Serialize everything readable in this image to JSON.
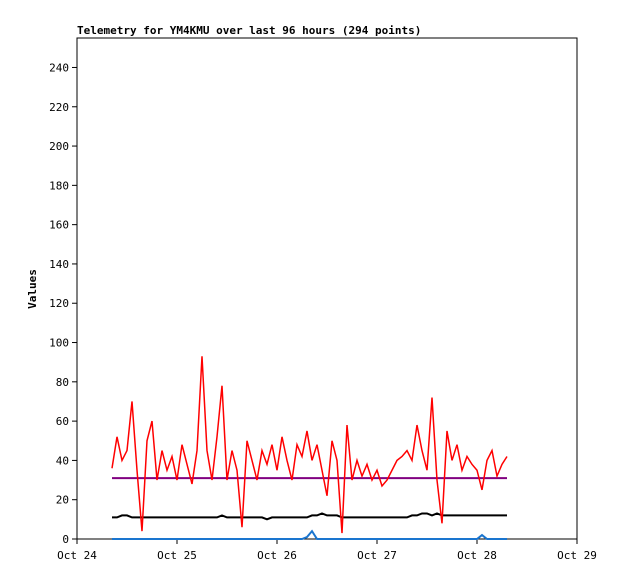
{
  "chart_data": {
    "type": "line",
    "title": "Telemetry for YM4KMU over last 96 hours (294 points)",
    "y_label": "Values",
    "xlim": [
      0,
      5
    ],
    "xticks": [
      {
        "value": 0,
        "label": "Oct 24"
      },
      {
        "value": 1,
        "label": "Oct 25"
      },
      {
        "value": 2,
        "label": "Oct 26"
      },
      {
        "value": 3,
        "label": "Oct 27"
      },
      {
        "value": 4,
        "label": "Oct 28"
      },
      {
        "value": 5,
        "label": "Oct 29"
      }
    ],
    "ylim": [
      0,
      255
    ],
    "yticks": [
      0,
      20,
      40,
      60,
      80,
      100,
      120,
      140,
      160,
      180,
      200,
      220,
      240
    ],
    "x": [
      0.35,
      0.4,
      0.45,
      0.5,
      0.55,
      0.6,
      0.65,
      0.7,
      0.75,
      0.8,
      0.85,
      0.9,
      0.95,
      1.0,
      1.05,
      1.1,
      1.15,
      1.2,
      1.25,
      1.3,
      1.35,
      1.4,
      1.45,
      1.5,
      1.55,
      1.6,
      1.65,
      1.7,
      1.75,
      1.8,
      1.85,
      1.9,
      1.95,
      2.0,
      2.05,
      2.1,
      2.15,
      2.2,
      2.25,
      2.3,
      2.35,
      2.4,
      2.45,
      2.5,
      2.55,
      2.6,
      2.65,
      2.7,
      2.75,
      2.8,
      2.85,
      2.9,
      2.95,
      3.0,
      3.05,
      3.1,
      3.15,
      3.2,
      3.25,
      3.3,
      3.35,
      3.4,
      3.45,
      3.5,
      3.55,
      3.6,
      3.65,
      3.7,
      3.75,
      3.8,
      3.85,
      3.9,
      3.95,
      4.0,
      4.05,
      4.1,
      4.15,
      4.2,
      4.25,
      4.3
    ],
    "series": [
      {
        "color": "#ff0000",
        "values": [
          36,
          52,
          40,
          45,
          70,
          35,
          4,
          50,
          60,
          30,
          45,
          35,
          42,
          30,
          48,
          38,
          28,
          45,
          93,
          45,
          30,
          52,
          78,
          30,
          45,
          35,
          6,
          50,
          40,
          30,
          45,
          38,
          48,
          35,
          52,
          40,
          30,
          48,
          42,
          55,
          40,
          48,
          35,
          22,
          50,
          40,
          3,
          58,
          30,
          40,
          32,
          38,
          30,
          35,
          27,
          30,
          35,
          40,
          42,
          45,
          40,
          58,
          45,
          35,
          72,
          30,
          8,
          55,
          40,
          48,
          35,
          42,
          38,
          35,
          25,
          40,
          45,
          32,
          38,
          42
        ]
      },
      {
        "color": "#800080",
        "values": [
          31,
          31,
          31,
          31,
          31,
          31,
          31,
          31,
          31,
          31,
          31,
          31,
          31,
          31,
          31,
          31,
          31,
          31,
          31,
          31,
          31,
          31,
          31,
          31,
          31,
          31,
          31,
          31,
          31,
          31,
          31,
          31,
          31,
          31,
          31,
          31,
          31,
          31,
          31,
          31,
          31,
          31,
          31,
          31,
          31,
          31,
          31,
          31,
          31,
          31,
          31,
          31,
          31,
          31,
          31,
          31,
          31,
          31,
          31,
          31,
          31,
          31,
          31,
          31,
          31,
          31,
          31,
          31,
          31,
          31,
          31,
          31,
          31,
          31,
          31,
          31,
          31,
          31,
          31,
          31
        ]
      },
      {
        "color": "#000000",
        "values": [
          11,
          11,
          12,
          12,
          11,
          11,
          11,
          11,
          11,
          11,
          11,
          11,
          11,
          11,
          11,
          11,
          11,
          11,
          11,
          11,
          11,
          11,
          12,
          11,
          11,
          11,
          11,
          11,
          11,
          11,
          11,
          10,
          11,
          11,
          11,
          11,
          11,
          11,
          11,
          11,
          12,
          12,
          13,
          12,
          12,
          12,
          11,
          11,
          11,
          11,
          11,
          11,
          11,
          11,
          11,
          11,
          11,
          11,
          11,
          11,
          12,
          12,
          13,
          13,
          12,
          13,
          12,
          12,
          12,
          12,
          12,
          12,
          12,
          12,
          12,
          12,
          12,
          12,
          12,
          12
        ]
      },
      {
        "color": "#1a75cf",
        "values": [
          0,
          0,
          0,
          0,
          0,
          0,
          0,
          0,
          0,
          0,
          0,
          0,
          0,
          0,
          0,
          0,
          0,
          0,
          0,
          0,
          0,
          0,
          0,
          0,
          0,
          0,
          0,
          0,
          0,
          0,
          0,
          0,
          0,
          0,
          0,
          0,
          0,
          0,
          0,
          1,
          4,
          0,
          0,
          0,
          0,
          0,
          0,
          0,
          0,
          0,
          0,
          0,
          0,
          0,
          0,
          0,
          0,
          0,
          0,
          0,
          0,
          0,
          0,
          0,
          0,
          0,
          0,
          0,
          0,
          0,
          0,
          0,
          0,
          0,
          2,
          0,
          0,
          0,
          0,
          0
        ]
      }
    ]
  }
}
